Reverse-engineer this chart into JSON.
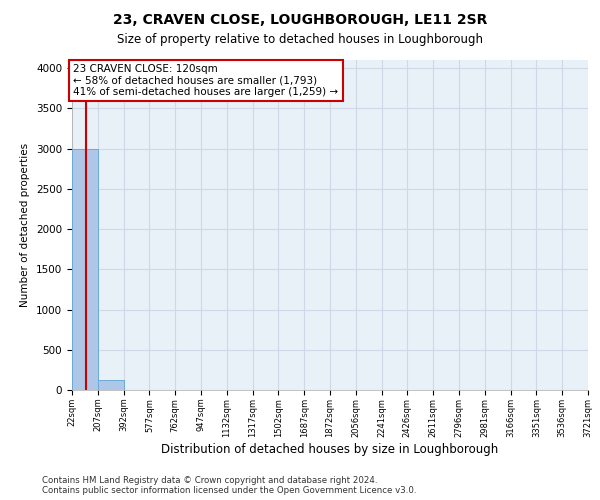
{
  "title_line1": "23, CRAVEN CLOSE, LOUGHBOROUGH, LE11 2SR",
  "title_line2": "Size of property relative to detached houses in Loughborough",
  "xlabel": "Distribution of detached houses by size in Loughborough",
  "ylabel": "Number of detached properties",
  "footnote": "Contains HM Land Registry data © Crown copyright and database right 2024.\nContains public sector information licensed under the Open Government Licence v3.0.",
  "bin_edges": [
    22,
    207,
    392,
    577,
    762,
    947,
    1132,
    1317,
    1502,
    1687,
    1872,
    2056,
    2241,
    2426,
    2611,
    2796,
    2981,
    3166,
    3351,
    3536,
    3721
  ],
  "bar_heights": [
    3000,
    120,
    0,
    0,
    0,
    0,
    0,
    0,
    0,
    0,
    0,
    0,
    0,
    0,
    0,
    0,
    0,
    0,
    0,
    0
  ],
  "bar_color": "#aec6e8",
  "bar_edgecolor": "#6aaad4",
  "grid_color": "#d0d8e8",
  "bg_color": "#e8f0f8",
  "property_size": 120,
  "red_line_color": "#cc0000",
  "annotation_text": "23 CRAVEN CLOSE: 120sqm\n← 58% of detached houses are smaller (1,793)\n41% of semi-detached houses are larger (1,259) →",
  "annotation_box_edgecolor": "#cc0000",
  "annotation_box_facecolor": "#ffffff",
  "ylim": [
    0,
    4100
  ],
  "yticks": [
    0,
    500,
    1000,
    1500,
    2000,
    2500,
    3000,
    3500,
    4000
  ]
}
